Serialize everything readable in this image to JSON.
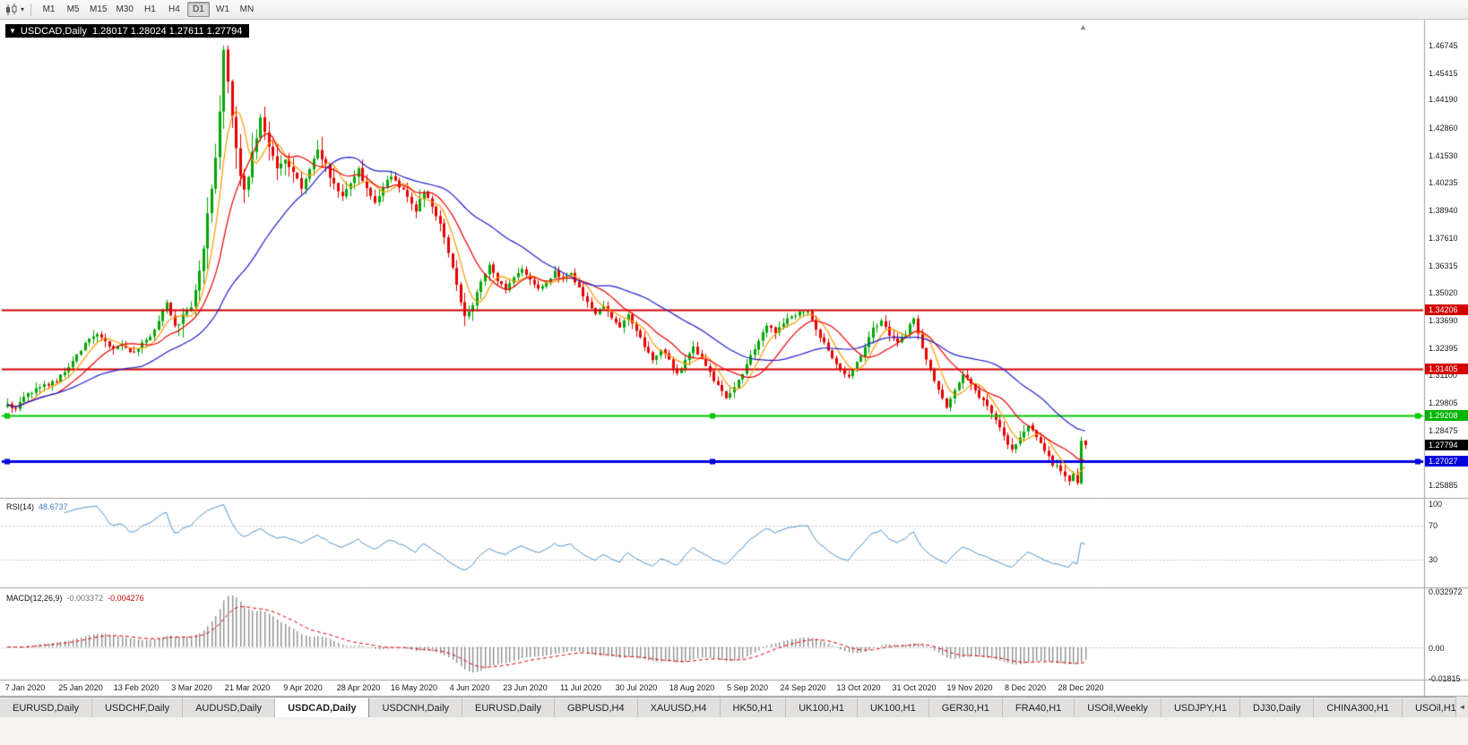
{
  "toolbar": {
    "timeframes": [
      "M1",
      "M5",
      "M15",
      "M30",
      "H1",
      "H4",
      "D1",
      "W1",
      "MN"
    ],
    "active_timeframe": "D1"
  },
  "icons": {
    "chart_type_caret": "▾",
    "title_collapse": "▼",
    "shift_marker": "▲",
    "tab_scroll_left": "◄"
  },
  "chart": {
    "title_text": "USDCAD,Daily  1.28017 1.28024 1.27611 1.27794",
    "price_axis_ticks": [
      "1.46745",
      "1.45415",
      "1.44190",
      "1.42860",
      "1.41530",
      "1.40235",
      "1.38940",
      "1.37610",
      "1.36315",
      "1.35020",
      "1.33690",
      "1.32395",
      "1.31100",
      "1.29805",
      "1.28475",
      "1.25885"
    ],
    "price_tags": [
      {
        "text": "1.34206",
        "value": 1.34206,
        "color": "#d40000",
        "kind": "resistance-line"
      },
      {
        "text": "1.31405",
        "value": 1.31405,
        "color": "#d40000",
        "kind": "resistance-line"
      },
      {
        "text": "1.29208",
        "value": 1.29208,
        "color": "#00b400",
        "kind": "support-line"
      },
      {
        "text": "1.27794",
        "value": 1.27794,
        "color": "#000000",
        "kind": "current-price"
      },
      {
        "text": "1.27027",
        "value": 1.27027,
        "color": "#0000dd",
        "kind": "support-line"
      }
    ],
    "date_labels": [
      "7 Jan 2020",
      "25 Jan 2020",
      "13 Feb 2020",
      "3 Mar 2020",
      "21 Mar 2020",
      "9 Apr 2020",
      "28 Apr 2020",
      "16 May 2020",
      "4 Jun 2020",
      "23 Jun 2020",
      "11 Jul 2020",
      "30 Jul 2020",
      "18 Aug 2020",
      "5 Sep 2020",
      "24 Sep 2020",
      "13 Oct 2020",
      "31 Oct 2020",
      "19 Nov 2020",
      "8 Dec 2020",
      "28 Dec 2020"
    ]
  },
  "indicators": {
    "rsi": {
      "name": "RSI(14)",
      "value": "48.6737",
      "line_color": "#4d94d0",
      "levels": [
        {
          "label": "100",
          "value": 100
        },
        {
          "label": "70",
          "value": 70
        },
        {
          "label": "30",
          "value": 30
        }
      ]
    },
    "macd": {
      "name": "MACD(12,26,9)",
      "value": "-0.003372",
      "signal": "-0.004276",
      "histogram_color": "#8f8f8f",
      "signal_color": "#e00000",
      "axis": [
        {
          "label": "0.032972",
          "value": 0.032972
        },
        {
          "label": "0.00",
          "value": 0
        },
        {
          "label": "-0.01815",
          "value": -0.01815
        }
      ]
    }
  },
  "tabs": {
    "active_index": 3,
    "items": [
      "EURUSD,Daily",
      "USDCHF,Daily",
      "AUDUSD,Daily",
      "USDCAD,Daily",
      "USDCNH,Daily",
      "EURUSD,Daily",
      "GBPUSD,H4",
      "XAUUSD,H4",
      "HK50,H1",
      "UK100,H1",
      "UK100,H1",
      "GER30,H1",
      "FRA40,H1",
      "USOil,Weekly",
      "USDJPY,H1",
      "DJ30,Daily",
      "CHINA300,H1",
      "USOil,H1"
    ]
  },
  "chart_data": {
    "type": "candlestick",
    "symbol": "USDCAD",
    "timeframe": "Daily",
    "bars": 265,
    "ylim": [
      1.2542,
      1.4764
    ],
    "up_color": "#00a600",
    "down_color": "#e60000",
    "session_high": 1.4675,
    "session_low": 1.2589,
    "last_bar": {
      "open": 1.28017,
      "high": 1.28024,
      "low": 1.27611,
      "close": 1.27794
    },
    "horizontal_lines": [
      {
        "price": 1.34206,
        "color": "#d40000",
        "width": 2,
        "selected": false
      },
      {
        "price": 1.31405,
        "color": "#d40000",
        "width": 2,
        "selected": false
      },
      {
        "price": 1.29208,
        "color": "#00c800",
        "width": 2,
        "selected": true
      },
      {
        "price": 1.27027,
        "color": "#0000dd",
        "width": 3,
        "selected": true
      }
    ],
    "moving_averages": [
      {
        "period": 6,
        "color": "#ff9900"
      },
      {
        "period": 13,
        "color": "#ee0000"
      },
      {
        "period": 34,
        "color": "#2020cc"
      }
    ],
    "price_path_anchors": [
      [
        0,
        1.2968
      ],
      [
        2,
        1.2948
      ],
      [
        4,
        1.3005
      ],
      [
        7,
        1.3045
      ],
      [
        10,
        1.307
      ],
      [
        12,
        1.3085
      ],
      [
        14,
        1.313
      ],
      [
        16,
        1.3175
      ],
      [
        18,
        1.323
      ],
      [
        20,
        1.329
      ],
      [
        22,
        1.331
      ],
      [
        24,
        1.327
      ],
      [
        26,
        1.324
      ],
      [
        28,
        1.326
      ],
      [
        30,
        1.322
      ],
      [
        32,
        1.324
      ],
      [
        34,
        1.328
      ],
      [
        36,
        1.332
      ],
      [
        38,
        1.342
      ],
      [
        39,
        1.346
      ],
      [
        41,
        1.334
      ],
      [
        43,
        1.339
      ],
      [
        45,
        1.345
      ],
      [
        47,
        1.36
      ],
      [
        49,
        1.385
      ],
      [
        51,
        1.415
      ],
      [
        53,
        1.463
      ],
      [
        54,
        1.448
      ],
      [
        55,
        1.436
      ],
      [
        56,
        1.42
      ],
      [
        57,
        1.406
      ],
      [
        58,
        1.398
      ],
      [
        60,
        1.415
      ],
      [
        62,
        1.433
      ],
      [
        64,
        1.418
      ],
      [
        66,
        1.409
      ],
      [
        68,
        1.414
      ],
      [
        70,
        1.408
      ],
      [
        72,
        1.4
      ],
      [
        74,
        1.41
      ],
      [
        76,
        1.417
      ],
      [
        78,
        1.411
      ],
      [
        80,
        1.402
      ],
      [
        82,
        1.395
      ],
      [
        84,
        1.403
      ],
      [
        86,
        1.409
      ],
      [
        88,
        1.399
      ],
      [
        90,
        1.394
      ],
      [
        92,
        1.4
      ],
      [
        94,
        1.406
      ],
      [
        96,
        1.401
      ],
      [
        98,
        1.396
      ],
      [
        100,
        1.39
      ],
      [
        102,
        1.399
      ],
      [
        104,
        1.392
      ],
      [
        106,
        1.383
      ],
      [
        108,
        1.37
      ],
      [
        110,
        1.353
      ],
      [
        112,
        1.339
      ],
      [
        114,
        1.345
      ],
      [
        116,
        1.356
      ],
      [
        118,
        1.363
      ],
      [
        120,
        1.356
      ],
      [
        122,
        1.352
      ],
      [
        124,
        1.357
      ],
      [
        126,
        1.362
      ],
      [
        128,
        1.356
      ],
      [
        130,
        1.352
      ],
      [
        132,
        1.355
      ],
      [
        134,
        1.36
      ],
      [
        136,
        1.357
      ],
      [
        138,
        1.359
      ],
      [
        140,
        1.352
      ],
      [
        142,
        1.346
      ],
      [
        144,
        1.34
      ],
      [
        146,
        1.344
      ],
      [
        148,
        1.339
      ],
      [
        150,
        1.334
      ],
      [
        152,
        1.34
      ],
      [
        154,
        1.333
      ],
      [
        156,
        1.325
      ],
      [
        158,
        1.319
      ],
      [
        160,
        1.323
      ],
      [
        162,
        1.318
      ],
      [
        164,
        1.312
      ],
      [
        166,
        1.318
      ],
      [
        168,
        1.324
      ],
      [
        170,
        1.319
      ],
      [
        172,
        1.312
      ],
      [
        174,
        1.306
      ],
      [
        176,
        1.3
      ],
      [
        178,
        1.305
      ],
      [
        180,
        1.312
      ],
      [
        182,
        1.32
      ],
      [
        184,
        1.328
      ],
      [
        186,
        1.335
      ],
      [
        188,
        1.331
      ],
      [
        190,
        1.336
      ],
      [
        192,
        1.339
      ],
      [
        194,
        1.341
      ],
      [
        196,
        1.342
      ],
      [
        198,
        1.333
      ],
      [
        200,
        1.326
      ],
      [
        202,
        1.319
      ],
      [
        204,
        1.313
      ],
      [
        206,
        1.311
      ],
      [
        208,
        1.317
      ],
      [
        210,
        1.324
      ],
      [
        212,
        1.333
      ],
      [
        214,
        1.337
      ],
      [
        216,
        1.33
      ],
      [
        218,
        1.326
      ],
      [
        220,
        1.331
      ],
      [
        222,
        1.338
      ],
      [
        224,
        1.324
      ],
      [
        226,
        1.313
      ],
      [
        228,
        1.304
      ],
      [
        230,
        1.296
      ],
      [
        232,
        1.304
      ],
      [
        234,
        1.311
      ],
      [
        236,
        1.307
      ],
      [
        238,
        1.301
      ],
      [
        240,
        1.296
      ],
      [
        242,
        1.29
      ],
      [
        244,
        1.282
      ],
      [
        246,
        1.276
      ],
      [
        248,
        1.282
      ],
      [
        250,
        1.288
      ],
      [
        252,
        1.282
      ],
      [
        254,
        1.276
      ],
      [
        256,
        1.269
      ],
      [
        258,
        1.266
      ],
      [
        259,
        1.263
      ],
      [
        260,
        1.261
      ],
      [
        261,
        1.264
      ],
      [
        262,
        1.2598
      ],
      [
        263,
        1.2802
      ],
      [
        264,
        1.27794
      ]
    ]
  }
}
